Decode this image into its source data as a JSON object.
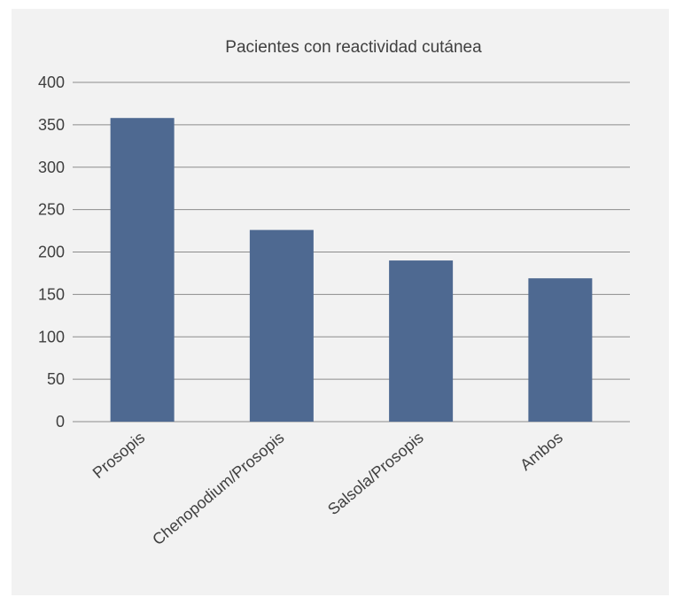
{
  "chart_data": {
    "type": "bar",
    "title": "Pacientes con reactividad cutánea",
    "categories": [
      "Prosopis",
      "Chenopodium/Prosopis",
      "Salsola/Prosopis",
      "Ambos"
    ],
    "values": [
      358,
      226,
      190,
      169
    ],
    "ylim": [
      0,
      400
    ],
    "yticks": [
      0,
      50,
      100,
      150,
      200,
      250,
      300,
      350,
      400
    ],
    "grid": true,
    "bar_color": "#4e6991",
    "background_color": "#f2f2f2"
  }
}
